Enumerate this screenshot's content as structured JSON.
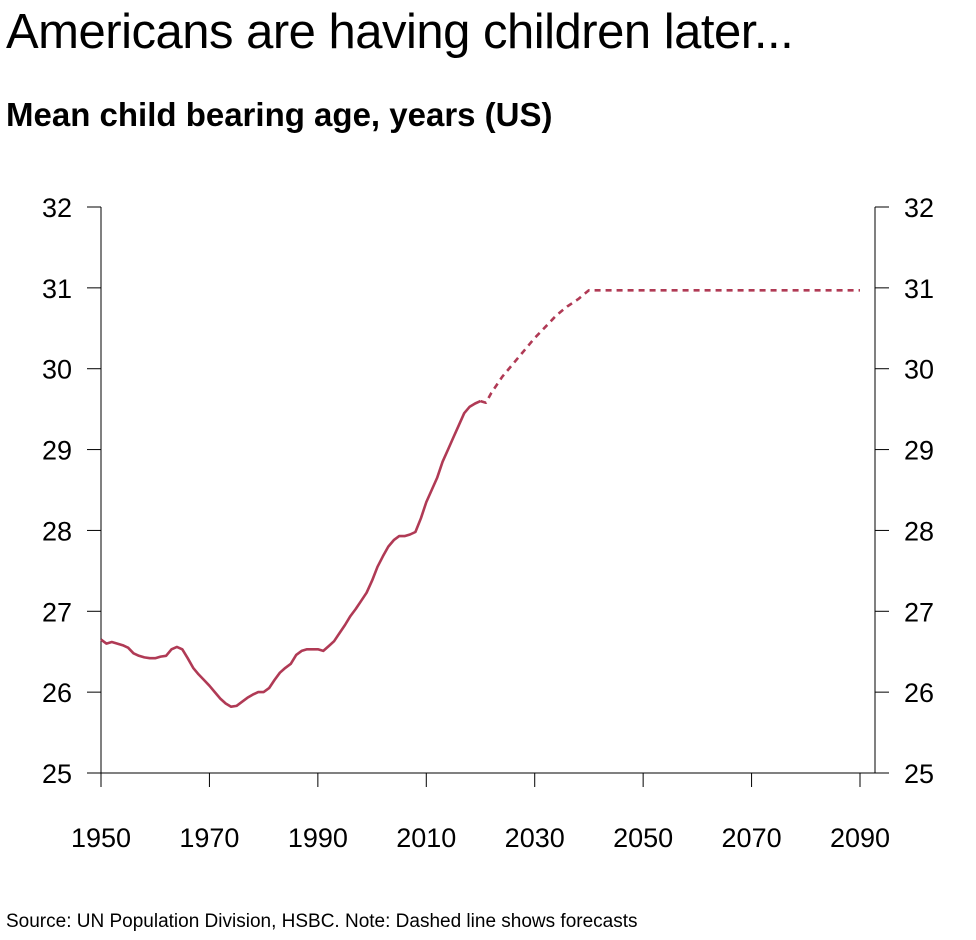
{
  "title": "Americans are having children later...",
  "subtitle": "Mean child bearing age, years (US)",
  "source": "Source: UN Population Division, HSBC. Note: Dashed line shows forecasts",
  "colors": {
    "series": "#b03a55",
    "axis": "#000000"
  },
  "chart_data": {
    "type": "line",
    "title": "Mean child bearing age, years (US)",
    "xlabel": "",
    "ylabel": "",
    "xlim": [
      1950,
      2090
    ],
    "ylim": [
      25,
      32
    ],
    "x_ticks": [
      1950,
      1970,
      1990,
      2010,
      2030,
      2050,
      2070,
      2090
    ],
    "y_ticks": [
      25,
      26,
      27,
      28,
      29,
      30,
      31,
      32
    ],
    "y_axis_both_sides": true,
    "grid": false,
    "legend": "none",
    "series": [
      {
        "style": "solid",
        "x": [
          1950,
          1951,
          1952,
          1953,
          1954,
          1955,
          1956,
          1957,
          1958,
          1959,
          1960,
          1961,
          1962,
          1963,
          1964,
          1965,
          1966,
          1967,
          1968,
          1969,
          1970,
          1971,
          1972,
          1973,
          1974,
          1975,
          1976,
          1977,
          1978,
          1979,
          1980,
          1981,
          1982,
          1983,
          1984,
          1985,
          1986,
          1987,
          1988,
          1989,
          1990,
          1991,
          1992,
          1993,
          1994,
          1995,
          1996,
          1997,
          1998,
          1999,
          2000,
          2001,
          2002,
          2003,
          2004,
          2005,
          2006,
          2007,
          2008,
          2009,
          2010,
          2011,
          2012,
          2013,
          2014,
          2015,
          2016,
          2017,
          2018,
          2019,
          2020
        ],
        "y": [
          26.65,
          26.6,
          26.62,
          26.6,
          26.58,
          26.55,
          26.48,
          26.45,
          26.43,
          26.42,
          26.42,
          26.44,
          26.45,
          26.53,
          26.56,
          26.53,
          26.42,
          26.3,
          26.22,
          26.15,
          26.08,
          26.0,
          25.92,
          25.86,
          25.82,
          25.83,
          25.88,
          25.93,
          25.97,
          26.0,
          26.0,
          26.05,
          26.15,
          26.24,
          26.3,
          26.35,
          26.46,
          26.51,
          26.53,
          26.53,
          26.53,
          26.51,
          26.57,
          26.63,
          26.73,
          26.83,
          26.94,
          27.03,
          27.13,
          27.23,
          27.38,
          27.55,
          27.68,
          27.8,
          27.88,
          27.93,
          27.93,
          27.95,
          27.98,
          28.15,
          28.35,
          28.5,
          28.65,
          28.85,
          29.0,
          29.15,
          29.3,
          29.45,
          29.53,
          29.57,
          29.6
        ]
      },
      {
        "style": "dashed",
        "x": [
          2020,
          2021,
          2022,
          2024,
          2026,
          2028,
          2030,
          2032,
          2034,
          2036,
          2038,
          2040,
          2045,
          2050,
          2060,
          2070,
          2080,
          2090
        ],
        "y": [
          29.6,
          29.58,
          29.7,
          29.9,
          30.06,
          30.22,
          30.38,
          30.52,
          30.66,
          30.77,
          30.86,
          30.97,
          30.97,
          30.97,
          30.97,
          30.97,
          30.97,
          30.97
        ]
      }
    ]
  }
}
